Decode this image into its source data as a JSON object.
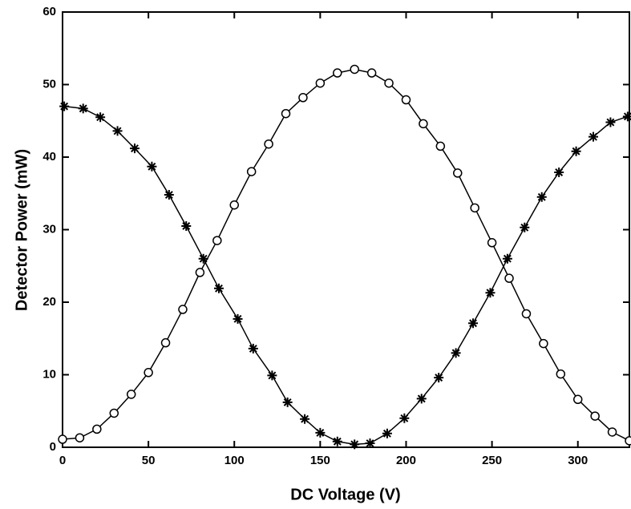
{
  "chart_data": {
    "type": "line",
    "xlabel": "DC Voltage (V)",
    "ylabel": "Detector Power (mW)",
    "xlim": [
      0,
      330
    ],
    "ylim": [
      0,
      60
    ],
    "xticks": [
      0,
      50,
      100,
      150,
      200,
      250,
      300
    ],
    "yticks": [
      0,
      10,
      20,
      30,
      40,
      50,
      60
    ],
    "series": [
      {
        "color": "#000000",
        "marker": "circle",
        "x": [
          0,
          10,
          20,
          30,
          40,
          50,
          60,
          70,
          80,
          90,
          100,
          110,
          120,
          130,
          140,
          150,
          160,
          170,
          180,
          190,
          200,
          210,
          220,
          230,
          240,
          250,
          260,
          270,
          280,
          290,
          300,
          310,
          320,
          330
        ],
        "values": [
          1.1,
          1.3,
          2.5,
          4.7,
          7.3,
          10.3,
          14.4,
          19.0,
          24.1,
          28.5,
          33.4,
          38.0,
          41.8,
          46.0,
          48.2,
          50.2,
          51.6,
          52.1,
          51.6,
          50.2,
          47.9,
          44.6,
          41.5,
          37.8,
          33.0,
          28.2,
          23.3,
          18.4,
          14.3,
          10.1,
          6.6,
          4.3,
          2.1,
          0.9
        ]
      },
      {
        "color": "#000000",
        "marker": "star",
        "x": [
          1,
          12,
          22,
          32,
          42,
          52,
          62,
          72,
          82,
          91,
          102,
          111,
          122,
          131,
          141,
          150,
          160,
          170,
          179,
          189,
          199,
          209,
          219,
          229,
          239,
          249,
          259,
          269,
          279,
          289,
          299,
          309,
          319,
          329
        ],
        "values": [
          47.0,
          46.7,
          45.5,
          43.6,
          41.2,
          38.7,
          34.8,
          30.5,
          26.0,
          21.9,
          17.7,
          13.6,
          9.9,
          6.2,
          3.9,
          2.0,
          0.8,
          0.4,
          0.55,
          1.9,
          4.0,
          6.7,
          9.6,
          13.0,
          17.1,
          21.3,
          26.0,
          30.3,
          34.5,
          37.9,
          40.8,
          42.8,
          44.8,
          45.6
        ]
      }
    ]
  }
}
